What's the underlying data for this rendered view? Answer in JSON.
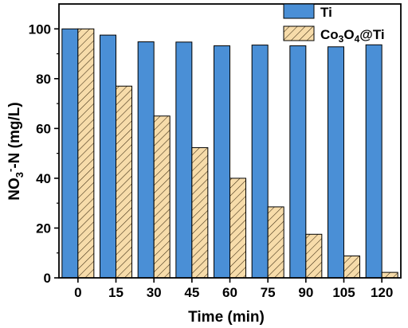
{
  "chart_data": {
    "type": "bar",
    "xlabel": "Time (min)",
    "ylabel_main": "NO",
    "ylabel_sub": "3",
    "ylabel_sup": "-",
    "ylabel_rest": "-N (mg/L)",
    "categories": [
      "0",
      "15",
      "30",
      "45",
      "60",
      "75",
      "90",
      "105",
      "120"
    ],
    "ylim": [
      0,
      110
    ],
    "yticks": [
      0,
      20,
      40,
      60,
      80,
      100
    ],
    "grid": false,
    "legend_position": "top-right",
    "series": [
      {
        "name": "Ti",
        "color": "#4a8fd6",
        "pattern": "solid",
        "values": [
          100,
          97.5,
          94.8,
          94.7,
          93.2,
          93.5,
          93.2,
          92.8,
          93.6
        ]
      },
      {
        "name_parts": [
          "Co",
          "3",
          "O",
          "4",
          "@Ti"
        ],
        "color": "#f7dcaa",
        "pattern": "hatch",
        "values": [
          100,
          77,
          65,
          52.3,
          40,
          28.5,
          17.5,
          8.8,
          2.2
        ]
      }
    ]
  }
}
